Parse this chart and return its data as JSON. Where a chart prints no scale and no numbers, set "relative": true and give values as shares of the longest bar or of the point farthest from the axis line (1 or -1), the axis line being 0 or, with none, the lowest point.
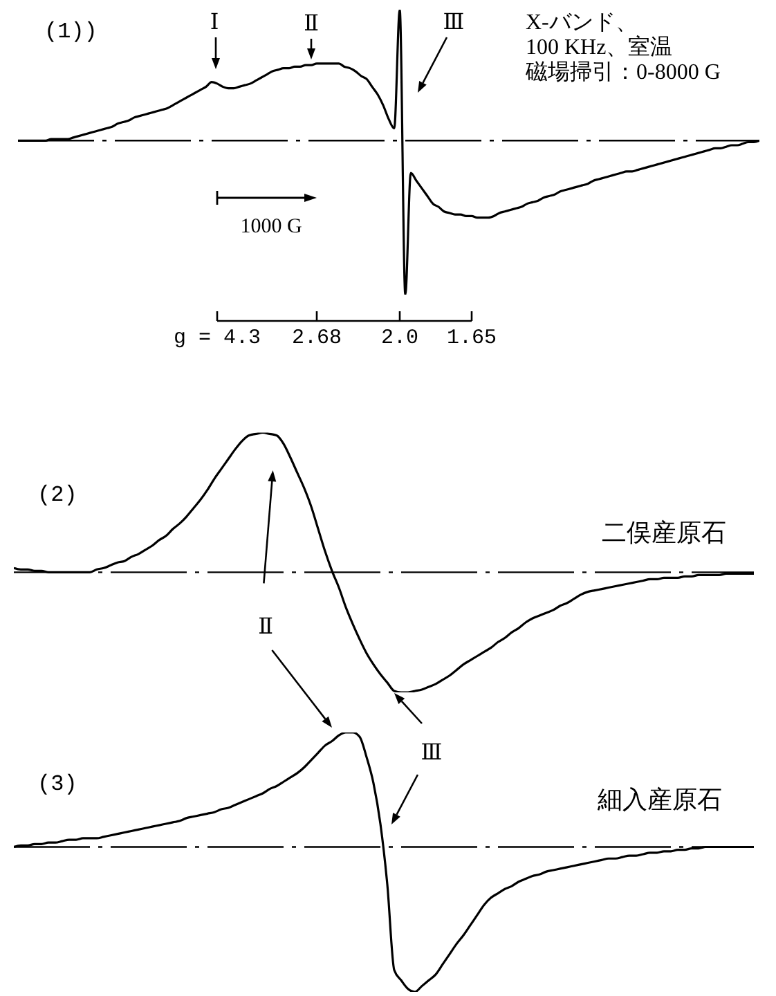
{
  "chart_data": [
    {
      "type": "line",
      "title": "(1))",
      "relative": true,
      "color": "#000000",
      "tick_labels": "x",
      "categories": [
        null,
        null,
        null,
        null,
        null,
        null,
        null,
        null,
        null,
        null,
        null,
        null,
        null,
        null,
        null,
        null,
        null,
        null,
        null,
        null,
        null,
        null,
        null,
        null,
        null,
        null,
        null,
        null,
        null,
        null,
        null,
        null,
        null,
        null,
        null,
        null,
        "g = 4.3",
        null,
        null,
        null,
        null,
        null,
        null,
        null,
        null,
        null,
        null,
        null,
        null,
        null,
        null,
        null,
        null,
        null,
        "2.68",
        null,
        null,
        null,
        null,
        null,
        null,
        null,
        null,
        null,
        null,
        null,
        null,
        null,
        null,
        "2.0",
        null,
        null,
        null,
        null,
        null,
        null,
        null,
        null,
        null,
        null,
        null,
        null,
        "1.65",
        null,
        null,
        null,
        null,
        null,
        null,
        null,
        null,
        null,
        null,
        null,
        null,
        null,
        null,
        null,
        null,
        null,
        null,
        null,
        null,
        null,
        null,
        null,
        null,
        null,
        null,
        null,
        null,
        null,
        null,
        null,
        null,
        null,
        null,
        null,
        null,
        null,
        null,
        null,
        null,
        null,
        null,
        null,
        null,
        null,
        null,
        null,
        null,
        null,
        null,
        null,
        null
      ],
      "values": [
        0,
        0,
        0,
        0,
        0,
        0,
        0.01,
        0.01,
        0.01,
        0.01,
        0.02,
        0.03,
        0.04,
        0.05,
        0.06,
        0.07,
        0.08,
        0.09,
        0.11,
        0.12,
        0.13,
        0.15,
        0.16,
        0.17,
        0.18,
        0.19,
        0.2,
        0.21,
        0.23,
        0.25,
        0.27,
        0.29,
        0.31,
        0.33,
        0.35,
        0.38,
        0.37,
        0.35,
        0.34,
        0.34,
        0.35,
        0.36,
        0.37,
        0.39,
        0.41,
        0.43,
        0.45,
        0.46,
        0.47,
        0.47,
        0.48,
        0.48,
        0.49,
        0.49,
        0.5,
        0.5,
        0.5,
        0.5,
        0.5,
        0.48,
        0.47,
        0.45,
        0.42,
        0.4,
        0.35,
        0.3,
        0.23,
        0.14,
        0.08,
        0.85,
        -1,
        -0.21,
        -0.26,
        -0.31,
        -0.36,
        -0.41,
        -0.43,
        -0.46,
        -0.47,
        -0.48,
        -0.48,
        -0.49,
        -0.49,
        -0.5,
        -0.5,
        -0.5,
        -0.49,
        -0.47,
        -0.46,
        -0.45,
        -0.44,
        -0.43,
        -0.41,
        -0.4,
        -0.39,
        -0.37,
        -0.36,
        -0.35,
        -0.33,
        -0.32,
        -0.31,
        -0.3,
        -0.29,
        -0.28,
        -0.26,
        -0.25,
        -0.24,
        -0.23,
        -0.22,
        -0.21,
        -0.2,
        -0.2,
        -0.19,
        -0.18,
        -0.17,
        -0.16,
        -0.15,
        -0.14,
        -0.13,
        -0.12,
        -0.11,
        -0.1,
        -0.09,
        -0.08,
        -0.07,
        -0.06,
        -0.05,
        -0.05,
        -0.04,
        -0.03,
        -0.03,
        -0.02,
        -0.01,
        -0.01,
        0
      ],
      "ref_lines": [
        {
          "axis": "y",
          "value": 0,
          "line_style": "dashed"
        }
      ],
      "annotations": [
        "Ⅰ",
        "Ⅱ",
        "Ⅲ",
        "1000 G",
        "X-バンド、",
        "100 KHz、室温",
        "磁場掃引：0-8000 G"
      ]
    },
    {
      "type": "line",
      "title": "(2)",
      "relative": true,
      "color": "#000000",
      "tick_labels": false,
      "categories": [
        null,
        null,
        null,
        null,
        null,
        null,
        null,
        null,
        null,
        null,
        null,
        null,
        null,
        null,
        null,
        null,
        null,
        null,
        null,
        null,
        null,
        null,
        null,
        null,
        null,
        null,
        null,
        null,
        null,
        null,
        null,
        null,
        null,
        null,
        null,
        null,
        null,
        null,
        null,
        null,
        null,
        null,
        null,
        null,
        null,
        null,
        null,
        null,
        null,
        null,
        null,
        null,
        null,
        null,
        null,
        null,
        null,
        null,
        null,
        null,
        null,
        null,
        null,
        null,
        null,
        null,
        null,
        null,
        null,
        null,
        null,
        null,
        null,
        null,
        null,
        null,
        null,
        null,
        null,
        null,
        null,
        null,
        null,
        null,
        null,
        null,
        null,
        null,
        null,
        null,
        null,
        null,
        null,
        null,
        null,
        null,
        null,
        null,
        null,
        null,
        null,
        null,
        null,
        null,
        null,
        null,
        null,
        null
      ],
      "values": [
        0.03,
        0.02,
        0.02,
        0.01,
        0.01,
        0,
        0,
        0,
        0,
        0,
        0,
        0,
        0.02,
        0.03,
        0.05,
        0.07,
        0.08,
        0.11,
        0.13,
        0.16,
        0.19,
        0.23,
        0.26,
        0.31,
        0.35,
        0.4,
        0.46,
        0.52,
        0.59,
        0.67,
        0.74,
        0.81,
        0.88,
        0.94,
        0.98,
        0.99,
        1,
        0.99,
        0.98,
        0.92,
        0.82,
        0.71,
        0.6,
        0.47,
        0.31,
        0.15,
        0.01,
        -0.11,
        -0.25,
        -0.37,
        -0.48,
        -0.58,
        -0.66,
        -0.73,
        -0.79,
        -0.85,
        -0.86,
        -0.86,
        -0.85,
        -0.84,
        -0.82,
        -0.8,
        -0.77,
        -0.74,
        -0.7,
        -0.66,
        -0.63,
        -0.6,
        -0.57,
        -0.54,
        -0.5,
        -0.47,
        -0.43,
        -0.4,
        -0.36,
        -0.33,
        -0.31,
        -0.29,
        -0.27,
        -0.24,
        -0.22,
        -0.19,
        -0.16,
        -0.14,
        -0.13,
        -0.12,
        -0.11,
        -0.1,
        -0.09,
        -0.08,
        -0.07,
        -0.06,
        -0.05,
        -0.05,
        -0.04,
        -0.04,
        -0.04,
        -0.03,
        -0.03,
        -0.02,
        -0.02,
        -0.02,
        -0.02,
        -0.01,
        -0.01,
        -0.01,
        -0.01,
        -0.01
      ],
      "ref_lines": [
        {
          "axis": "y",
          "value": 0,
          "line_style": "dashed"
        }
      ],
      "annotations": [
        "二俣産原石",
        "Ⅱ"
      ]
    },
    {
      "type": "line",
      "title": "(3)",
      "relative": true,
      "color": "#000000",
      "tick_labels": false,
      "categories": [
        null,
        null,
        null,
        null,
        null,
        null,
        null,
        null,
        null,
        null,
        null,
        null,
        null,
        null,
        null,
        null,
        null,
        null,
        null,
        null,
        null,
        null,
        null,
        null,
        null,
        null,
        null,
        null,
        null,
        null,
        null,
        null,
        null,
        null,
        null,
        null,
        null,
        null,
        null,
        null,
        null,
        null,
        null,
        null,
        null,
        null,
        null,
        null,
        null,
        null,
        null,
        null,
        null,
        null,
        null,
        null,
        null,
        null,
        null,
        null,
        null,
        null,
        null,
        null,
        null,
        null,
        null,
        null,
        null,
        null,
        null,
        null,
        null,
        null,
        null,
        null,
        null,
        null,
        null,
        null,
        null,
        null,
        null,
        null,
        null,
        null,
        null,
        null,
        null,
        null,
        null,
        null,
        null,
        null,
        null,
        null,
        null,
        null,
        null,
        null,
        null,
        null,
        null,
        null,
        null,
        null,
        null,
        null
      ],
      "values": [
        0,
        0.01,
        0.01,
        0.02,
        0.02,
        0.03,
        0.03,
        0.04,
        0.05,
        0.05,
        0.06,
        0.06,
        0.06,
        0.07,
        0.08,
        0.09,
        0.1,
        0.11,
        0.12,
        0.13,
        0.14,
        0.15,
        0.16,
        0.17,
        0.18,
        0.2,
        0.21,
        0.22,
        0.23,
        0.24,
        0.26,
        0.27,
        0.29,
        0.31,
        0.33,
        0.35,
        0.37,
        0.4,
        0.42,
        0.45,
        0.48,
        0.51,
        0.55,
        0.6,
        0.65,
        0.7,
        0.73,
        0.77,
        0.79,
        0.79,
        0.76,
        0.62,
        0.44,
        0.16,
        -0.26,
        -0.85,
        -0.92,
        -0.98,
        -1,
        -0.96,
        -0.92,
        -0.88,
        -0.81,
        -0.74,
        -0.67,
        -0.61,
        -0.54,
        -0.47,
        -0.4,
        -0.35,
        -0.32,
        -0.29,
        -0.27,
        -0.24,
        -0.22,
        -0.2,
        -0.19,
        -0.17,
        -0.16,
        -0.15,
        -0.14,
        -0.13,
        -0.12,
        -0.11,
        -0.1,
        -0.09,
        -0.08,
        -0.08,
        -0.07,
        -0.06,
        -0.06,
        -0.05,
        -0.04,
        -0.04,
        -0.03,
        -0.03,
        -0.02,
        -0.02,
        -0.01,
        -0.01,
        0,
        0,
        0,
        0,
        0,
        0,
        0,
        0
      ],
      "ref_lines": [
        {
          "axis": "y",
          "value": 0,
          "line_style": "dashed"
        }
      ],
      "annotations": [
        "細入産原石",
        "Ⅲ"
      ]
    }
  ]
}
